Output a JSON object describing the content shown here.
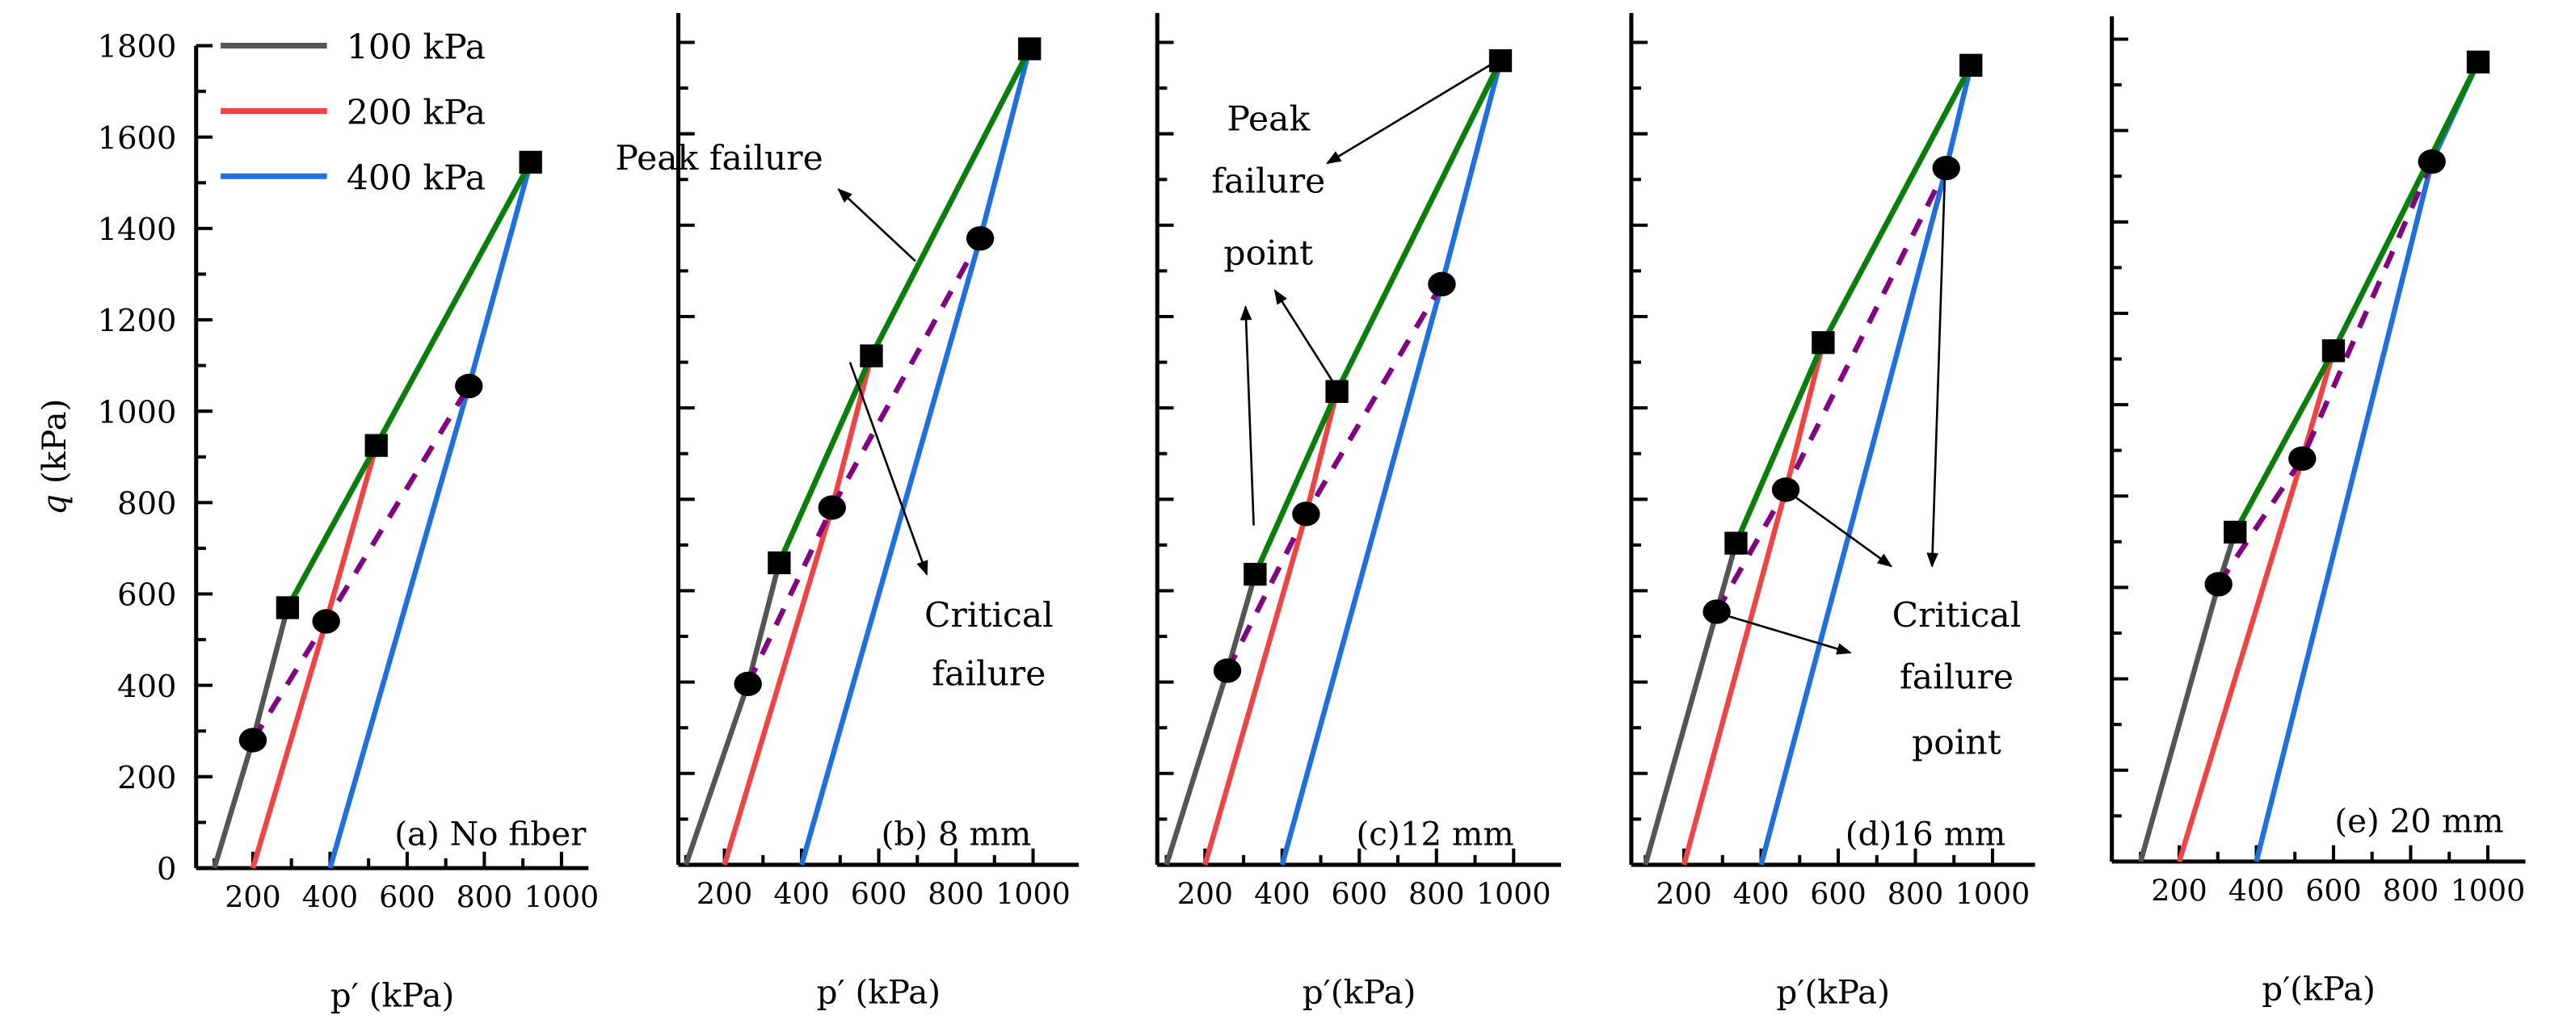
{
  "chart_data": {
    "type": "line",
    "ylabel": "q (kPa)",
    "y_ticks": [
      "0",
      "200",
      "400",
      "600",
      "800",
      "1000",
      "1200",
      "1400",
      "1600",
      "1800"
    ],
    "x_ticks": [
      "200",
      "400",
      "600",
      "800",
      "1000"
    ],
    "ylim": [
      0,
      1800
    ],
    "xlim": [
      50,
      1080
    ],
    "legend": {
      "placement": "top-left of panel (a)",
      "entries": [
        {
          "name": "100 kPa",
          "color": "#555555"
        },
        {
          "name": "200 kPa",
          "color": "#ef4444"
        },
        {
          "name": "400 kPa",
          "color": "#1f6fdc"
        }
      ]
    },
    "peak_line_color": "#0a7d0a",
    "critical_line_color": "#800080",
    "confining_start_p": [
      100,
      200,
      400
    ],
    "panels": [
      {
        "id": "a",
        "label": "(a) No fiber",
        "xlabel": "p′ (kPa)",
        "peak_points": [
          [
            290,
            570
          ],
          [
            520,
            925
          ],
          [
            920,
            1545
          ]
        ],
        "critical_points": [
          [
            200,
            280
          ],
          [
            390,
            540
          ],
          [
            760,
            1055
          ]
        ],
        "annotations": []
      },
      {
        "id": "b",
        "label": "(b) 8 mm",
        "xlabel": "p′ (kPa)",
        "peak_points": [
          [
            342,
            661
          ],
          [
            581,
            1114
          ],
          [
            991,
            1786
          ]
        ],
        "critical_points": [
          [
            261,
            396
          ],
          [
            479,
            782
          ],
          [
            863,
            1371
          ]
        ],
        "annotations": [
          {
            "lines": [
              "Peak failure"
            ]
          },
          {
            "lines": [
              "Critical",
              "failure"
            ]
          }
        ]
      },
      {
        "id": "c",
        "label": "(c)12 mm",
        "xlabel": "p′(kPa)",
        "peak_points": [
          [
            330,
            636
          ],
          [
            542,
            1036
          ],
          [
            966,
            1760
          ]
        ],
        "critical_points": [
          [
            258,
            425
          ],
          [
            462,
            768
          ],
          [
            814,
            1271
          ]
        ],
        "annotations": [
          {
            "lines": [
              "Peak",
              "failure",
              "point"
            ]
          }
        ]
      },
      {
        "id": "d",
        "label": "(d)16 mm",
        "xlabel": "p′(kPa)",
        "peak_points": [
          [
            335,
            704
          ],
          [
            561,
            1143
          ],
          [
            944,
            1750
          ]
        ],
        "critical_points": [
          [
            285,
            554
          ],
          [
            464,
            821
          ],
          [
            880,
            1525
          ]
        ],
        "annotations": [
          {
            "lines": [
              "Critical",
              "failure",
              "point"
            ]
          }
        ]
      },
      {
        "id": "e",
        "label": "(e) 20 mm",
        "xlabel": "p′(kPa)",
        "peak_points": [
          [
            345,
            721
          ],
          [
            600,
            1118
          ],
          [
            975,
            1750
          ]
        ],
        "critical_points": [
          [
            302,
            607
          ],
          [
            519,
            882
          ],
          [
            855,
            1532
          ]
        ],
        "annotations": []
      }
    ]
  }
}
